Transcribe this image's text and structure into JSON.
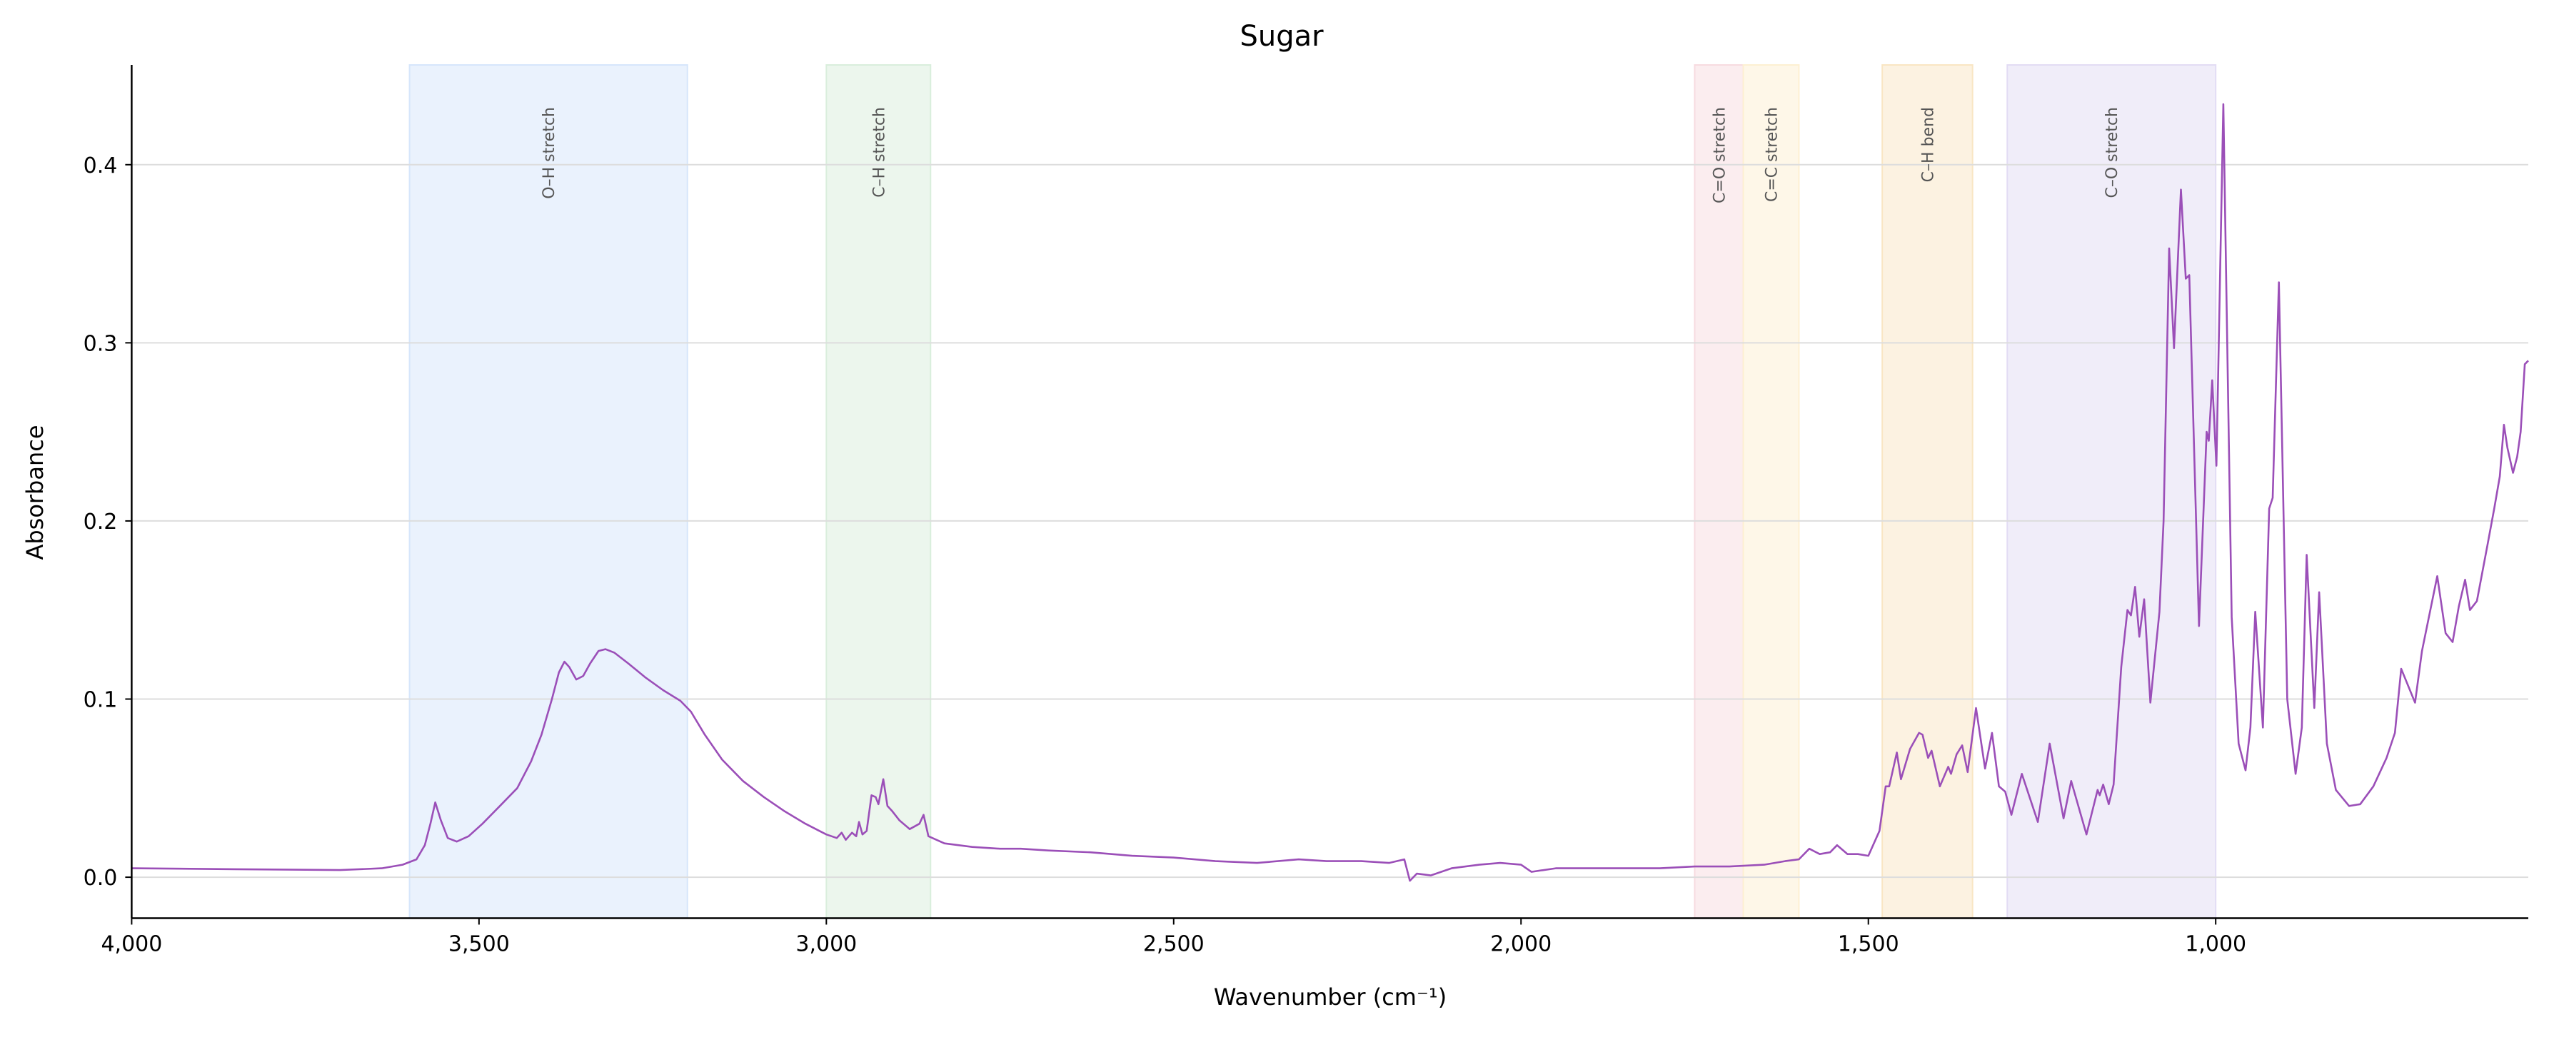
{
  "chart_data": {
    "type": "line",
    "title": "Sugar",
    "xlabel": "Wavenumber (cm⁻¹)",
    "ylabel": "Absorbance",
    "xlim": [
      4000,
      550
    ],
    "x_reversed": true,
    "ylim": [
      -0.023,
      0.456
    ],
    "grid": "horizontal",
    "line_color": "#9b4fb8",
    "x_ticks": [
      {
        "value": 4000,
        "label": "4,000"
      },
      {
        "value": 3500,
        "label": "3,500"
      },
      {
        "value": 3000,
        "label": "3,000"
      },
      {
        "value": 2500,
        "label": "2,500"
      },
      {
        "value": 2000,
        "label": "2,000"
      },
      {
        "value": 1500,
        "label": "1,500"
      },
      {
        "value": 1000,
        "label": "1,000"
      }
    ],
    "y_ticks": [
      {
        "value": 0.0,
        "label": "0.0"
      },
      {
        "value": 0.1,
        "label": "0.1"
      },
      {
        "value": 0.2,
        "label": "0.2"
      },
      {
        "value": 0.3,
        "label": "0.3"
      },
      {
        "value": 0.4,
        "label": "0.4"
      }
    ],
    "bands": [
      {
        "label": "O–H stretch",
        "from": 3600,
        "to": 3200,
        "color": "#d6e6fb"
      },
      {
        "label": "C–H stretch",
        "from": 3000,
        "to": 2850,
        "color": "#d9eedc"
      },
      {
        "label": "C=O stretch",
        "from": 1750,
        "to": 1680,
        "color": "#f7dbe0"
      },
      {
        "label": "C=C stretch",
        "from": 1680,
        "to": 1600,
        "color": "#fdf0d2"
      },
      {
        "label": "C–H bend",
        "from": 1480,
        "to": 1350,
        "color": "#f9e6c3"
      },
      {
        "label": "C–O stretch",
        "from": 1300,
        "to": 1000,
        "color": "#e2dcf4"
      }
    ],
    "series": [
      {
        "points": [
          [
            4000,
            0.005
          ],
          [
            3850,
            0.0045
          ],
          [
            3700,
            0.004
          ],
          [
            3640,
            0.005
          ],
          [
            3610,
            0.007
          ],
          [
            3590,
            0.01
          ],
          [
            3578,
            0.018
          ],
          [
            3570,
            0.03
          ],
          [
            3563,
            0.042
          ],
          [
            3555,
            0.032
          ],
          [
            3545,
            0.022
          ],
          [
            3532,
            0.02
          ],
          [
            3515,
            0.023
          ],
          [
            3495,
            0.03
          ],
          [
            3470,
            0.04
          ],
          [
            3445,
            0.05
          ],
          [
            3425,
            0.065
          ],
          [
            3410,
            0.08
          ],
          [
            3395,
            0.1
          ],
          [
            3385,
            0.115
          ],
          [
            3377,
            0.121
          ],
          [
            3370,
            0.118
          ],
          [
            3360,
            0.111
          ],
          [
            3350,
            0.113
          ],
          [
            3340,
            0.12
          ],
          [
            3328,
            0.127
          ],
          [
            3318,
            0.128
          ],
          [
            3305,
            0.126
          ],
          [
            3285,
            0.12
          ],
          [
            3260,
            0.112
          ],
          [
            3235,
            0.105
          ],
          [
            3210,
            0.099
          ],
          [
            3195,
            0.093
          ],
          [
            3175,
            0.08
          ],
          [
            3150,
            0.066
          ],
          [
            3120,
            0.054
          ],
          [
            3090,
            0.045
          ],
          [
            3060,
            0.037
          ],
          [
            3030,
            0.03
          ],
          [
            3000,
            0.024
          ],
          [
            2985,
            0.022
          ],
          [
            2978,
            0.025
          ],
          [
            2972,
            0.021
          ],
          [
            2963,
            0.025
          ],
          [
            2957,
            0.023
          ],
          [
            2953,
            0.031
          ],
          [
            2948,
            0.024
          ],
          [
            2942,
            0.026
          ],
          [
            2935,
            0.046
          ],
          [
            2929,
            0.045
          ],
          [
            2925,
            0.041
          ],
          [
            2918,
            0.055
          ],
          [
            2912,
            0.04
          ],
          [
            2905,
            0.037
          ],
          [
            2895,
            0.032
          ],
          [
            2880,
            0.027
          ],
          [
            2866,
            0.03
          ],
          [
            2860,
            0.035
          ],
          [
            2853,
            0.023
          ],
          [
            2830,
            0.019
          ],
          [
            2790,
            0.017
          ],
          [
            2750,
            0.016
          ],
          [
            2720,
            0.016
          ],
          [
            2680,
            0.015
          ],
          [
            2620,
            0.014
          ],
          [
            2560,
            0.012
          ],
          [
            2500,
            0.011
          ],
          [
            2440,
            0.009
          ],
          [
            2380,
            0.008
          ],
          [
            2320,
            0.01
          ],
          [
            2280,
            0.009
          ],
          [
            2230,
            0.009
          ],
          [
            2190,
            0.008
          ],
          [
            2168,
            0.01
          ],
          [
            2160,
            -0.002
          ],
          [
            2150,
            0.002
          ],
          [
            2130,
            0.001
          ],
          [
            2100,
            0.005
          ],
          [
            2060,
            0.007
          ],
          [
            2030,
            0.008
          ],
          [
            2000,
            0.007
          ],
          [
            1985,
            0.003
          ],
          [
            1950,
            0.005
          ],
          [
            1900,
            0.005
          ],
          [
            1850,
            0.005
          ],
          [
            1800,
            0.005
          ],
          [
            1750,
            0.006
          ],
          [
            1700,
            0.006
          ],
          [
            1650,
            0.007
          ],
          [
            1620,
            0.009
          ],
          [
            1600,
            0.01
          ],
          [
            1585,
            0.016
          ],
          [
            1570,
            0.013
          ],
          [
            1555,
            0.014
          ],
          [
            1545,
            0.018
          ],
          [
            1530,
            0.013
          ],
          [
            1515,
            0.013
          ],
          [
            1500,
            0.012
          ],
          [
            1484,
            0.026
          ],
          [
            1475,
            0.051
          ],
          [
            1470,
            0.051
          ],
          [
            1459,
            0.07
          ],
          [
            1453,
            0.055
          ],
          [
            1440,
            0.072
          ],
          [
            1427,
            0.081
          ],
          [
            1422,
            0.08
          ],
          [
            1414,
            0.067
          ],
          [
            1409,
            0.071
          ],
          [
            1397,
            0.051
          ],
          [
            1385,
            0.062
          ],
          [
            1381,
            0.058
          ],
          [
            1373,
            0.069
          ],
          [
            1365,
            0.074
          ],
          [
            1357,
            0.059
          ],
          [
            1345,
            0.095
          ],
          [
            1332,
            0.061
          ],
          [
            1322,
            0.081
          ],
          [
            1312,
            0.051
          ],
          [
            1303,
            0.048
          ],
          [
            1294,
            0.035
          ],
          [
            1279,
            0.058
          ],
          [
            1256,
            0.031
          ],
          [
            1239,
            0.075
          ],
          [
            1219,
            0.033
          ],
          [
            1208,
            0.054
          ],
          [
            1186,
            0.024
          ],
          [
            1170,
            0.049
          ],
          [
            1167,
            0.046
          ],
          [
            1162,
            0.052
          ],
          [
            1154,
            0.041
          ],
          [
            1147,
            0.052
          ],
          [
            1136,
            0.118
          ],
          [
            1127,
            0.15
          ],
          [
            1122,
            0.147
          ],
          [
            1116,
            0.163
          ],
          [
            1110,
            0.135
          ],
          [
            1103,
            0.156
          ],
          [
            1094,
            0.098
          ],
          [
            1081,
            0.149
          ],
          [
            1075,
            0.2
          ],
          [
            1067,
            0.353
          ],
          [
            1060,
            0.297
          ],
          [
            1050,
            0.386
          ],
          [
            1043,
            0.336
          ],
          [
            1038,
            0.338
          ],
          [
            1024,
            0.141
          ],
          [
            1013,
            0.25
          ],
          [
            1010,
            0.245
          ],
          [
            1005,
            0.279
          ],
          [
            999,
            0.231
          ],
          [
            989,
            0.434
          ],
          [
            977,
            0.146
          ],
          [
            967,
            0.075
          ],
          [
            957,
            0.06
          ],
          [
            950,
            0.084
          ],
          [
            943,
            0.149
          ],
          [
            932,
            0.084
          ],
          [
            923,
            0.207
          ],
          [
            918,
            0.213
          ],
          [
            909,
            0.334
          ],
          [
            897,
            0.1
          ],
          [
            885,
            0.058
          ],
          [
            876,
            0.084
          ],
          [
            869,
            0.181
          ],
          [
            858,
            0.095
          ],
          [
            851,
            0.16
          ],
          [
            840,
            0.075
          ],
          [
            827,
            0.049
          ],
          [
            808,
            0.04
          ],
          [
            792,
            0.041
          ],
          [
            773,
            0.051
          ],
          [
            754,
            0.067
          ],
          [
            742,
            0.081
          ],
          [
            733,
            0.117
          ],
          [
            713,
            0.098
          ],
          [
            703,
            0.127
          ],
          [
            681,
            0.169
          ],
          [
            669,
            0.137
          ],
          [
            659,
            0.132
          ],
          [
            650,
            0.152
          ],
          [
            641,
            0.167
          ],
          [
            634,
            0.15
          ],
          [
            624,
            0.155
          ],
          [
            609,
            0.186
          ],
          [
            599,
            0.207
          ],
          [
            591,
            0.225
          ],
          [
            585,
            0.254
          ],
          [
            580,
            0.241
          ],
          [
            572,
            0.227
          ],
          [
            566,
            0.236
          ],
          [
            561,
            0.25
          ],
          [
            555,
            0.288
          ],
          [
            550,
            0.29
          ]
        ]
      }
    ]
  }
}
